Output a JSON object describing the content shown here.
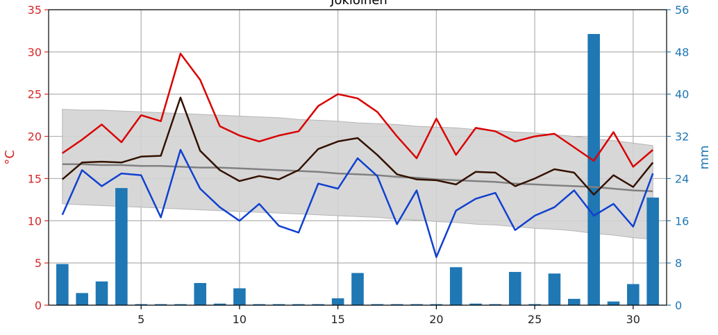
{
  "chart_data": {
    "type": "line",
    "title": "Jokioinen",
    "x": [
      1,
      2,
      3,
      4,
      5,
      6,
      7,
      8,
      9,
      10,
      11,
      12,
      13,
      14,
      15,
      16,
      17,
      18,
      19,
      20,
      21,
      22,
      23,
      24,
      25,
      26,
      27,
      28,
      29,
      30,
      31
    ],
    "xticks": [
      5,
      10,
      15,
      20,
      25,
      30
    ],
    "xlim": [
      0.3,
      31.7
    ],
    "ylabel_left": "°C",
    "ylim_left": [
      0,
      35
    ],
    "yticks_left": [
      0,
      5,
      10,
      15,
      20,
      25,
      30,
      35
    ],
    "ylabel_right": "mm",
    "ylim_right": [
      0,
      56
    ],
    "yticks_right": [
      0,
      8,
      16,
      24,
      32,
      40,
      48,
      56
    ],
    "grid": true,
    "series": [
      {
        "kind": "bar",
        "axis": "right",
        "values": [
          7.8,
          2.3,
          4.5,
          22.2,
          0.2,
          0.2,
          0.2,
          4.2,
          0.3,
          3.2,
          0.2,
          0.2,
          0.2,
          0.2,
          1.3,
          6.1,
          0.2,
          0.2,
          0.2,
          0.2,
          7.2,
          0.3,
          0.2,
          6.3,
          0.2,
          6.0,
          1.2,
          51.4,
          0.7,
          4.0,
          20.4
        ]
      },
      {
        "kind": "band",
        "axis": "left",
        "upper": [
          23.2,
          23.1,
          23.1,
          23.0,
          22.9,
          22.8,
          22.7,
          22.6,
          22.5,
          22.4,
          22.3,
          22.2,
          22.0,
          21.9,
          21.8,
          21.6,
          21.5,
          21.4,
          21.2,
          21.1,
          21.0,
          20.8,
          20.7,
          20.5,
          20.4,
          20.2,
          20.0,
          19.7,
          19.5,
          19.2,
          18.9
        ],
        "lower": [
          12.0,
          11.9,
          11.8,
          11.7,
          11.6,
          11.5,
          11.4,
          11.3,
          11.2,
          11.1,
          11.0,
          10.9,
          10.8,
          10.7,
          10.6,
          10.5,
          10.4,
          10.2,
          10.1,
          9.9,
          9.8,
          9.6,
          9.5,
          9.3,
          9.1,
          9.0,
          8.8,
          8.5,
          8.3,
          8.0,
          7.8
        ]
      },
      {
        "kind": "line",
        "axis": "left",
        "values": [
          16.7,
          16.7,
          16.6,
          16.6,
          16.5,
          16.5,
          16.4,
          16.3,
          16.3,
          16.2,
          16.1,
          16.0,
          15.9,
          15.8,
          15.6,
          15.5,
          15.4,
          15.2,
          15.1,
          14.9,
          14.8,
          14.7,
          14.6,
          14.4,
          14.3,
          14.2,
          14.1,
          14.0,
          13.8,
          13.6,
          13.5
        ]
      },
      {
        "kind": "line",
        "axis": "left",
        "values": [
          18.0,
          19.6,
          21.4,
          19.3,
          22.5,
          21.8,
          29.8,
          26.7,
          21.2,
          20.1,
          19.4,
          20.1,
          20.6,
          23.6,
          25.0,
          24.5,
          22.9,
          20.0,
          17.4,
          22.1,
          17.8,
          21.0,
          20.6,
          19.4,
          20.0,
          20.3,
          18.7,
          17.1,
          20.5,
          16.4,
          18.4
        ]
      },
      {
        "kind": "line",
        "axis": "left",
        "values": [
          14.9,
          16.9,
          17.0,
          16.9,
          17.6,
          17.7,
          24.6,
          18.3,
          16.0,
          14.7,
          15.3,
          14.9,
          16.0,
          18.5,
          19.4,
          19.8,
          17.8,
          15.5,
          14.9,
          14.8,
          14.3,
          15.8,
          15.7,
          14.1,
          15.0,
          16.1,
          15.7,
          13.1,
          15.4,
          14.0,
          16.9
        ]
      },
      {
        "kind": "line",
        "axis": "left",
        "values": [
          10.7,
          16.0,
          14.1,
          15.6,
          15.4,
          10.4,
          18.4,
          13.8,
          11.6,
          10.0,
          12.0,
          9.4,
          8.6,
          14.4,
          13.8,
          17.4,
          15.3,
          9.6,
          13.6,
          5.7,
          11.2,
          12.6,
          13.3,
          8.9,
          10.6,
          11.6,
          13.6,
          10.6,
          12.0,
          9.3,
          15.6
        ]
      }
    ],
    "colors": {
      "left_axis": "#d62728",
      "right_axis": "#1f77b4",
      "bars": "#1f77b4",
      "band": "#d3d3d3",
      "band_edge": "#b5b5b5",
      "mean_normal": "#808080",
      "max_temp": "#d90000",
      "mean_temp": "#331100",
      "min_temp": "#1040d0",
      "grid": "#b0b0b0"
    }
  }
}
